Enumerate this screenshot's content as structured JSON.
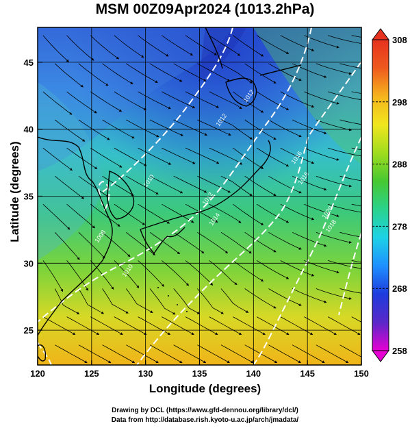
{
  "title": "MSM 00Z09Apr2024 (1013.2hPa)",
  "xlabel": "Longitude (degrees)",
  "ylabel": "Latitude  (degrees)",
  "credits": [
    "Drawing by DCL (https://www.gfd-dennou.org/library/dcl/)",
    "Data from http://database.rish.kyoto-u.ac.jp/arch/jmadata/"
  ],
  "chart_data": {
    "type": "heatmap",
    "x_ticks": [
      120,
      125,
      130,
      135,
      140,
      145,
      150
    ],
    "y_ticks": [
      25,
      30,
      35,
      40,
      45
    ],
    "xlim": [
      120,
      150
    ],
    "ylim": [
      22.4,
      47.6
    ],
    "colorbar": {
      "ticks": [
        258,
        268,
        278,
        288,
        298,
        308
      ],
      "range": [
        258,
        308
      ],
      "colors": [
        "#e600d2",
        "#5a28c8",
        "#1e3cdc",
        "#1e90ff",
        "#1ed2e6",
        "#2ad28c",
        "#46c832",
        "#a0dc1e",
        "#f0e61e",
        "#f5b41e",
        "#ee5a1e",
        "#e6321e"
      ]
    },
    "contour_labels": [
      "1008",
      "1010",
      "1010",
      "1012",
      "1012",
      "1012",
      "1014",
      "1016",
      "1016",
      "1018",
      "1020"
    ],
    "colors": {
      "cold": "#2f5ed6",
      "cool": "#3aa6e8",
      "mid": "#3cc97a",
      "warm": "#9ad838",
      "hot": "#f0b418",
      "isobar": "#ffffff",
      "coast": "#000000"
    }
  }
}
